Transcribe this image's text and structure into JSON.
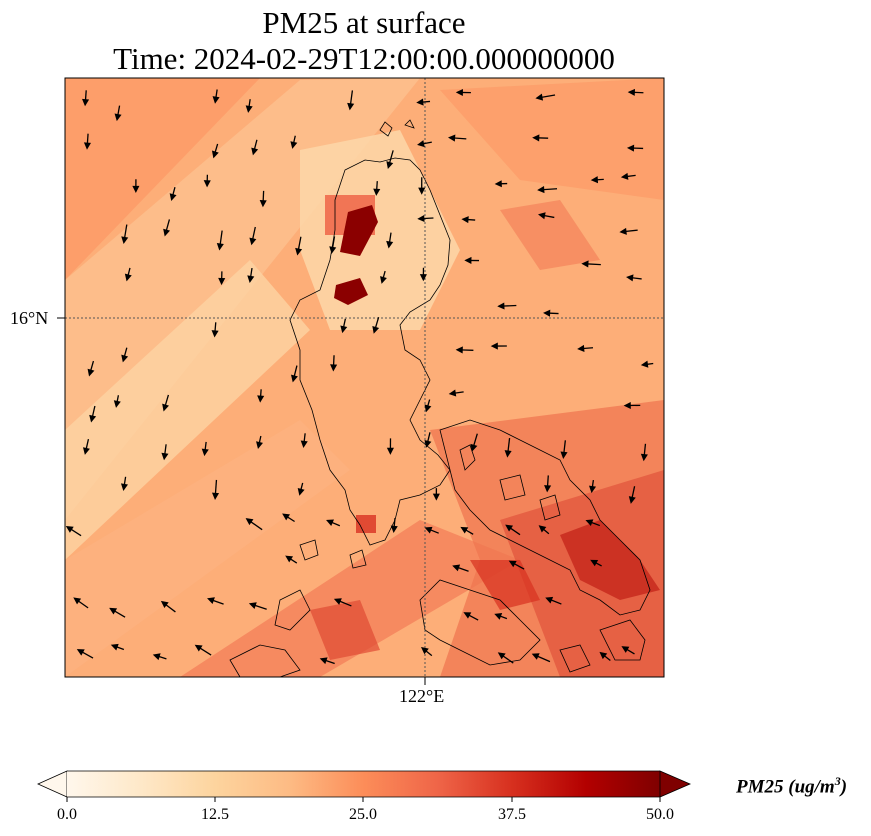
{
  "title": {
    "line1": "PM25 at surface",
    "line2": "Time: 2024-02-29T12:00:00.000000000"
  },
  "map": {
    "lat_label": "16°N",
    "lon_label": "122°E",
    "colormap": [
      "#fff7ec",
      "#fee8c8",
      "#fdd49e",
      "#fdbb84",
      "#fc8d59",
      "#ef6548",
      "#d7301f",
      "#b30000",
      "#7f0000"
    ],
    "coastline_color": "#000000",
    "gridline_style": "dotted"
  },
  "colorbar": {
    "ticks": [
      "0.0",
      "12.5",
      "25.0",
      "37.5",
      "50.0"
    ],
    "min": 0.0,
    "max": 50.0,
    "label": "PM25 (ug/m",
    "label_sup": "3",
    "label_end": ")",
    "extend": "both"
  }
}
